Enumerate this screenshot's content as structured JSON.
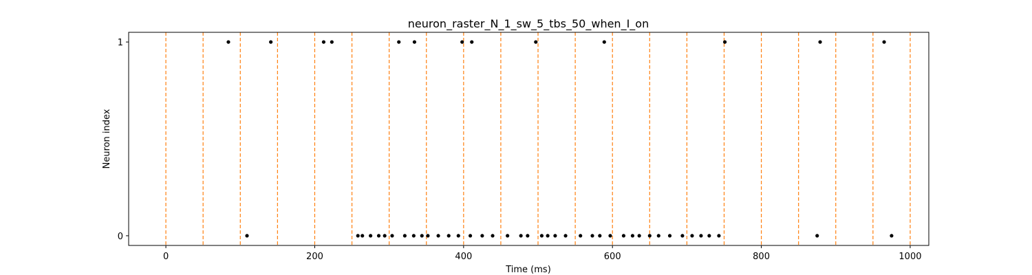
{
  "chart_data": {
    "type": "scatter",
    "title": "neuron_raster_N_1_sw_5_tbs_50_when_I_on",
    "xlabel": "Time (ms)",
    "ylabel": "Neuron index",
    "xlim": [
      -50,
      1025
    ],
    "ylim": [
      -0.05,
      1.05
    ],
    "xticks": [
      0,
      200,
      400,
      600,
      800,
      1000
    ],
    "yticks": [
      0,
      1
    ],
    "grid": false,
    "point_color": "#000000",
    "vline_color": "#ff7f0e",
    "vlines": [
      0,
      50,
      100,
      150,
      200,
      250,
      300,
      350,
      400,
      450,
      500,
      550,
      600,
      650,
      700,
      750,
      800,
      850,
      900,
      950,
      1000
    ],
    "series": [
      {
        "neuron": 1,
        "times": [
          84,
          141,
          212,
          223,
          313,
          334,
          398,
          411,
          497,
          589,
          751,
          879,
          965
        ]
      },
      {
        "neuron": 0,
        "times": [
          109,
          258,
          264,
          275,
          286,
          294,
          304,
          321,
          333,
          344,
          352,
          366,
          380,
          393,
          409,
          425,
          439,
          459,
          477,
          486,
          505,
          513,
          523,
          537,
          557,
          573,
          583,
          597,
          615,
          627,
          636,
          650,
          662,
          677,
          694,
          707,
          719,
          730,
          743,
          875,
          975
        ]
      }
    ]
  }
}
